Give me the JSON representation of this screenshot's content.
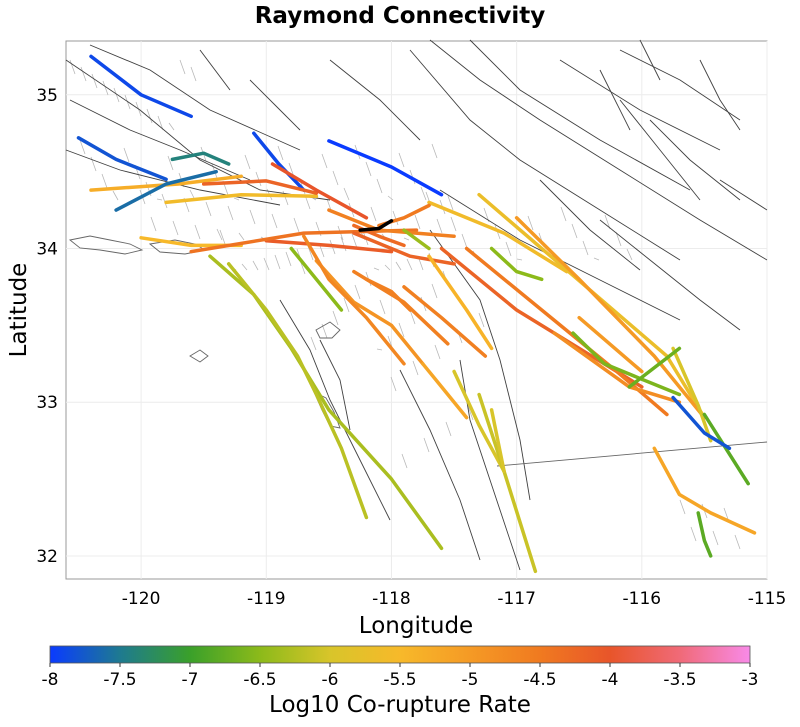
{
  "chart_data": {
    "type": "map",
    "title": "Raymond Connectivity",
    "xlabel": "Longitude",
    "ylabel": "Latitude",
    "xlim": [
      -120.6,
      -115
    ],
    "ylim": [
      31.85,
      35.35
    ],
    "xticks": [
      -120,
      -119,
      -118,
      -117,
      -116,
      -115
    ],
    "yticks": [
      32,
      33,
      34,
      35
    ],
    "colorbar": {
      "label": "Log10 Co-rupture Rate",
      "range": [
        -8,
        -3
      ],
      "ticks": [
        "-8",
        "-7.5",
        "-7",
        "-6.5",
        "-6",
        "-5.5",
        "-5",
        "-4.5",
        "-4",
        "-3.5",
        "-3"
      ],
      "colors": [
        "#0a3bff",
        "#1e7a90",
        "#3aa02a",
        "#8cba1a",
        "#d8c52a",
        "#f7b92a",
        "#f59a25",
        "#f07a20",
        "#e8552a",
        "#f06a78",
        "#f88ae8"
      ]
    },
    "source_fault": "Raymond",
    "source_color": "#000000",
    "rupture_segments": [
      {
        "path": [
          [
            -120.4,
            35.25
          ],
          [
            -120.0,
            35.0
          ],
          [
            -119.6,
            34.86
          ]
        ],
        "value": -7.9
      },
      {
        "path": [
          [
            -120.5,
            34.72
          ],
          [
            -120.2,
            34.58
          ],
          [
            -119.8,
            34.45
          ]
        ],
        "value": -7.8
      },
      {
        "path": [
          [
            -120.4,
            34.38
          ],
          [
            -119.7,
            34.42
          ],
          [
            -119.2,
            34.47
          ]
        ],
        "value": -5.3
      },
      {
        "path": [
          [
            -119.75,
            34.58
          ],
          [
            -119.5,
            34.62
          ],
          [
            -119.3,
            34.55
          ]
        ],
        "value": -7.4
      },
      {
        "path": [
          [
            -118.5,
            34.7
          ],
          [
            -118.0,
            34.53
          ],
          [
            -117.6,
            34.35
          ]
        ],
        "value": -8.0
      },
      {
        "path": [
          [
            -119.1,
            34.75
          ],
          [
            -118.9,
            34.55
          ],
          [
            -118.7,
            34.38
          ]
        ],
        "value": -7.9
      },
      {
        "path": [
          [
            -120.2,
            34.25
          ],
          [
            -119.8,
            34.42
          ],
          [
            -119.4,
            34.5
          ]
        ],
        "value": -7.6
      },
      {
        "path": [
          [
            -120.0,
            34.07
          ],
          [
            -119.6,
            34.02
          ],
          [
            -119.2,
            34.02
          ]
        ],
        "value": -5.5
      },
      {
        "path": [
          [
            -119.8,
            34.3
          ],
          [
            -119.2,
            34.35
          ],
          [
            -118.6,
            34.34
          ]
        ],
        "value": -5.6
      },
      {
        "path": [
          [
            -119.5,
            34.42
          ],
          [
            -119.0,
            34.44
          ],
          [
            -118.6,
            34.36
          ]
        ],
        "value": -4.2
      },
      {
        "path": [
          [
            -118.95,
            34.55
          ],
          [
            -118.6,
            34.38
          ],
          [
            -118.2,
            34.2
          ]
        ],
        "value": -4.0
      },
      {
        "path": [
          [
            -119.0,
            34.05
          ],
          [
            -118.5,
            34.02
          ],
          [
            -118.0,
            33.98
          ]
        ],
        "value": -4.1
      },
      {
        "path": [
          [
            -119.6,
            33.98
          ],
          [
            -118.7,
            34.1
          ],
          [
            -117.8,
            34.12
          ]
        ],
        "value": -4.4
      },
      {
        "path": [
          [
            -118.5,
            34.25
          ],
          [
            -118.1,
            34.12
          ],
          [
            -117.5,
            34.08
          ]
        ],
        "value": -4.6
      },
      {
        "path": [
          [
            -118.3,
            34.1
          ],
          [
            -117.85,
            33.95
          ],
          [
            -117.5,
            33.9
          ]
        ],
        "value": -4.2
      },
      {
        "path": [
          [
            -117.7,
            34.3
          ],
          [
            -117.1,
            34.1
          ],
          [
            -116.6,
            33.85
          ]
        ],
        "value": -5.6
      },
      {
        "path": [
          [
            -117.6,
            34.0
          ],
          [
            -117.0,
            33.6
          ],
          [
            -116.6,
            33.4
          ],
          [
            -116.0,
            33.1
          ]
        ],
        "value": -4.2
      },
      {
        "path": [
          [
            -117.4,
            34.0
          ],
          [
            -116.8,
            33.6
          ],
          [
            -116.2,
            33.2
          ],
          [
            -115.8,
            32.92
          ]
        ],
        "value": -4.5
      },
      {
        "path": [
          [
            -117.3,
            34.35
          ],
          [
            -116.8,
            34.0
          ],
          [
            -116.3,
            33.65
          ],
          [
            -115.8,
            33.3
          ],
          [
            -115.5,
            32.9
          ]
        ],
        "value": -5.7
      },
      {
        "path": [
          [
            -117.0,
            34.2
          ],
          [
            -116.5,
            33.8
          ],
          [
            -115.9,
            33.3
          ],
          [
            -115.5,
            32.9
          ]
        ],
        "value": -5.0
      },
      {
        "path": [
          [
            -116.7,
            33.45
          ],
          [
            -116.1,
            33.1
          ],
          [
            -115.7,
            33.0
          ]
        ],
        "value": -4.8
      },
      {
        "path": [
          [
            -116.5,
            33.55
          ],
          [
            -116.0,
            33.2
          ]
        ],
        "value": -5.0
      },
      {
        "path": [
          [
            -115.75,
            33.35
          ],
          [
            -115.55,
            32.98
          ],
          [
            -115.45,
            32.75
          ]
        ],
        "value": -6.0
      },
      {
        "path": [
          [
            -115.5,
            32.92
          ],
          [
            -115.15,
            32.47
          ]
        ],
        "value": -6.8
      },
      {
        "path": [
          [
            -115.75,
            33.03
          ],
          [
            -115.5,
            32.8
          ],
          [
            -115.3,
            32.7
          ]
        ],
        "value": -7.8
      },
      {
        "path": [
          [
            -117.7,
            33.95
          ],
          [
            -117.4,
            33.6
          ],
          [
            -117.2,
            33.35
          ]
        ],
        "value": -5.4
      },
      {
        "path": [
          [
            -117.9,
            33.75
          ],
          [
            -117.6,
            33.55
          ],
          [
            -117.25,
            33.3
          ]
        ],
        "value": -4.6
      },
      {
        "path": [
          [
            -118.3,
            33.85
          ],
          [
            -117.9,
            33.65
          ],
          [
            -117.55,
            33.38
          ]
        ],
        "value": -4.6
      },
      {
        "path": [
          [
            -118.6,
            33.92
          ],
          [
            -118.3,
            33.65
          ],
          [
            -118.0,
            33.5
          ],
          [
            -117.75,
            33.25
          ]
        ],
        "value": -4.9
      },
      {
        "path": [
          [
            -117.5,
            33.2
          ],
          [
            -117.3,
            32.85
          ],
          [
            -117.1,
            32.55
          ]
        ],
        "value": -6.0
      },
      {
        "path": [
          [
            -117.3,
            33.05
          ],
          [
            -117.1,
            32.55
          ],
          [
            -116.85,
            31.9
          ]
        ],
        "value": -6.1
      },
      {
        "path": [
          [
            -119.45,
            33.95
          ],
          [
            -119.1,
            33.7
          ],
          [
            -118.8,
            33.35
          ],
          [
            -118.5,
            32.95
          ],
          [
            -118.0,
            32.5
          ],
          [
            -117.6,
            32.05
          ]
        ],
        "value": -6.3
      },
      {
        "path": [
          [
            -119.3,
            33.9
          ],
          [
            -119.0,
            33.6
          ],
          [
            -118.75,
            33.3
          ],
          [
            -118.6,
            33.05
          ],
          [
            -118.4,
            32.7
          ],
          [
            -118.2,
            32.25
          ]
        ],
        "value": -6.2
      },
      {
        "path": [
          [
            -118.8,
            34.0
          ],
          [
            -118.6,
            33.8
          ],
          [
            -118.4,
            33.6
          ]
        ],
        "value": -6.5
      },
      {
        "path": [
          [
            -118.7,
            34.08
          ],
          [
            -118.5,
            33.8
          ],
          [
            -118.2,
            33.55
          ],
          [
            -117.9,
            33.25
          ]
        ],
        "value": -4.7
      },
      {
        "path": [
          [
            -117.75,
            33.25
          ],
          [
            -117.55,
            33.05
          ],
          [
            -117.4,
            32.9
          ]
        ],
        "value": -5.2
      },
      {
        "path": [
          [
            -117.2,
            32.95
          ],
          [
            -117.1,
            32.55
          ]
        ],
        "value": -6.0
      },
      {
        "path": [
          [
            -116.55,
            33.45
          ],
          [
            -116.3,
            33.25
          ],
          [
            -116.0,
            33.15
          ],
          [
            -115.7,
            33.05
          ]
        ],
        "value": -6.6
      },
      {
        "path": [
          [
            -116.1,
            33.1
          ],
          [
            -115.7,
            33.35
          ]
        ],
        "value": -6.7
      },
      {
        "path": [
          [
            -115.9,
            32.7
          ],
          [
            -115.7,
            32.4
          ],
          [
            -115.45,
            32.28
          ],
          [
            -115.1,
            32.15
          ]
        ],
        "value": -5.2
      },
      {
        "path": [
          [
            -115.55,
            32.28
          ],
          [
            -115.5,
            32.1
          ],
          [
            -115.45,
            32.0
          ]
        ],
        "value": -6.8
      },
      {
        "path": [
          [
            -118.3,
            34.15
          ],
          [
            -118.1,
            34.08
          ],
          [
            -117.9,
            34.02
          ]
        ],
        "value": -4.3
      },
      {
        "path": [
          [
            -118.1,
            34.15
          ],
          [
            -117.9,
            34.2
          ],
          [
            -117.7,
            34.28
          ]
        ],
        "value": -4.5
      },
      {
        "path": [
          [
            -117.2,
            34.0
          ],
          [
            -117.0,
            33.85
          ],
          [
            -116.8,
            33.8
          ]
        ],
        "value": -6.5
      },
      {
        "path": [
          [
            -118.2,
            33.8
          ],
          [
            -118.0,
            33.72
          ],
          [
            -117.85,
            33.6
          ]
        ],
        "value": -4.6
      },
      {
        "path": [
          [
            -117.9,
            34.12
          ],
          [
            -117.7,
            34.0
          ]
        ],
        "value": -6.4
      }
    ],
    "source_segment": {
      "path": [
        [
          -118.25,
          34.12
        ],
        [
          -118.1,
          34.13
        ],
        [
          -118.0,
          34.18
        ]
      ],
      "value": null
    }
  }
}
